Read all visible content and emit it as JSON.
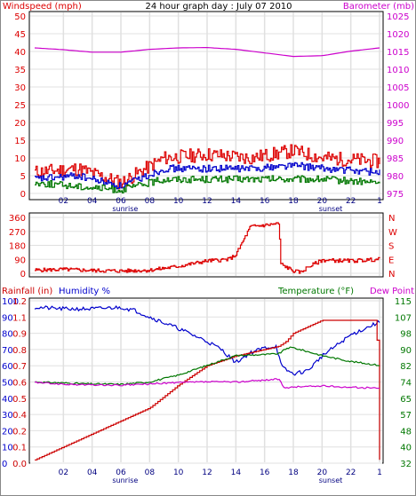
{
  "chart_data": [
    {
      "type": "line",
      "title": "24 hour graph day : July 07 2010",
      "ylabel_left": "Windspeed (mph)",
      "ylabel_right": "Barometer (mb)",
      "x_ticks": [
        "02",
        "04",
        "06",
        "08",
        "10",
        "12",
        "14",
        "16",
        "18",
        "20",
        "22",
        "1"
      ],
      "x_annotations": [
        "sunrise",
        "sunset"
      ],
      "y_left_ticks": [
        50,
        45,
        40,
        35,
        30,
        25,
        20,
        15,
        10,
        5,
        0
      ],
      "y_right_ticks": [
        1025,
        1020,
        1015,
        1010,
        1005,
        1000,
        995,
        990,
        985,
        980,
        975
      ],
      "ylim_left": [
        0,
        50
      ],
      "ylim_right": [
        975,
        1025
      ],
      "grid": true,
      "series": [
        {
          "name": "Windspeed (mph)",
          "color": "#dd0000",
          "x": [
            0,
            3,
            6,
            9,
            12,
            15,
            18,
            20,
            24
          ],
          "y": [
            6,
            7,
            3,
            10,
            11,
            10,
            12,
            10,
            9
          ]
        },
        {
          "name": "",
          "color": "#0000cc",
          "x": [
            0,
            3,
            6,
            9,
            12,
            15,
            18,
            20,
            24
          ],
          "y": [
            4,
            5,
            2,
            7,
            7,
            7,
            8,
            7,
            6
          ]
        },
        {
          "name": "",
          "color": "#007700",
          "x": [
            0,
            3,
            6,
            9,
            12,
            15,
            18,
            20,
            24
          ],
          "y": [
            3,
            2,
            1,
            4,
            4,
            4,
            4,
            4,
            3
          ]
        },
        {
          "name": "Barometer (mb)",
          "color": "#cc00cc",
          "x": [
            0,
            2,
            4,
            6,
            8,
            10,
            12,
            14,
            16,
            18,
            20,
            22,
            24
          ],
          "y": [
            1016,
            1015.5,
            1014.8,
            1014.8,
            1015.6,
            1016,
            1016.1,
            1015.6,
            1014.6,
            1013.6,
            1013.8,
            1015.1,
            1016
          ]
        }
      ]
    },
    {
      "type": "line",
      "y_left_ticks": [
        360,
        270,
        180,
        90,
        0
      ],
      "y_right_ticks": [
        "N",
        "W",
        "S",
        "E",
        "N"
      ],
      "ylim": [
        0,
        360
      ],
      "grid": true,
      "series": [
        {
          "name": "",
          "color": "#dd0000",
          "x": [
            0,
            2,
            4,
            6,
            8,
            10,
            12,
            13.5,
            14,
            15,
            16,
            17,
            17.1,
            18,
            18.5,
            19,
            20,
            22,
            24
          ],
          "y": [
            20,
            25,
            18,
            15,
            20,
            45,
            80,
            90,
            120,
            300,
            310,
            320,
            60,
            15,
            5,
            40,
            85,
            80,
            90
          ]
        }
      ]
    },
    {
      "type": "line",
      "ylabel_left": "Rainfall (in)",
      "ylabel_left2": "Humidity %",
      "ylabel_right": "Temperature (°F)",
      "ylabel_right2": "Dew Point",
      "y_humidity_ticks": [
        100,
        90,
        80,
        70,
        60,
        50,
        40,
        30,
        20,
        10,
        0
      ],
      "y_rain_ticks": [
        "1.2",
        "1.1",
        "0.9",
        "0.8",
        "0.7",
        "0.6",
        "0.5",
        "0.4",
        "0.2",
        "0.1",
        "0.0"
      ],
      "y_temp_ticks": [
        115,
        107,
        98,
        90,
        82,
        74,
        65,
        57,
        48,
        40,
        32
      ],
      "ylim_humidity": [
        0,
        100
      ],
      "ylim_temp": [
        32,
        115
      ],
      "grid": true,
      "series": [
        {
          "name": "Humidity %",
          "color": "#0000cc",
          "axis": "humidity",
          "x": [
            0,
            2,
            4,
            6,
            7,
            8,
            10,
            12,
            13,
            14,
            15,
            16,
            16.8,
            17.2,
            18,
            19,
            20,
            22,
            24
          ],
          "y": [
            96,
            95,
            95,
            96,
            94,
            90,
            83,
            75,
            70,
            62,
            68,
            71,
            72,
            59,
            55,
            57,
            66,
            79,
            87
          ]
        },
        {
          "name": "Rainfall (in)",
          "color": "#cc0000",
          "axis": "humidity",
          "x": [
            0,
            2,
            4,
            6,
            8,
            10,
            12,
            14,
            16,
            17,
            17.5,
            18,
            20,
            22,
            23.8,
            24
          ],
          "y": [
            2,
            10,
            18,
            26,
            34,
            48,
            60,
            66,
            70,
            72,
            75,
            80,
            88,
            88,
            88,
            2
          ]
        },
        {
          "name": "Temperature (°F)",
          "color": "#007700",
          "axis": "temp",
          "x": [
            0,
            2,
            4,
            6,
            8,
            10,
            12,
            14,
            16,
            17,
            17.6,
            18,
            20,
            22,
            24
          ],
          "y": [
            73.5,
            73,
            72.5,
            72.3,
            73.5,
            77,
            82,
            87,
            87.5,
            88,
            91,
            91,
            87,
            84,
            82
          ]
        },
        {
          "name": "Dew Point",
          "color": "#cc00cc",
          "axis": "temp",
          "x": [
            0,
            2,
            4,
            6,
            8,
            10,
            12,
            14,
            16,
            17,
            17.4,
            18,
            20,
            22,
            24
          ],
          "y": [
            73.3,
            72.3,
            72,
            71.8,
            72.5,
            73.2,
            73.6,
            73.5,
            74.5,
            75,
            70,
            71,
            71.5,
            70.8,
            70.3
          ]
        }
      ]
    }
  ]
}
